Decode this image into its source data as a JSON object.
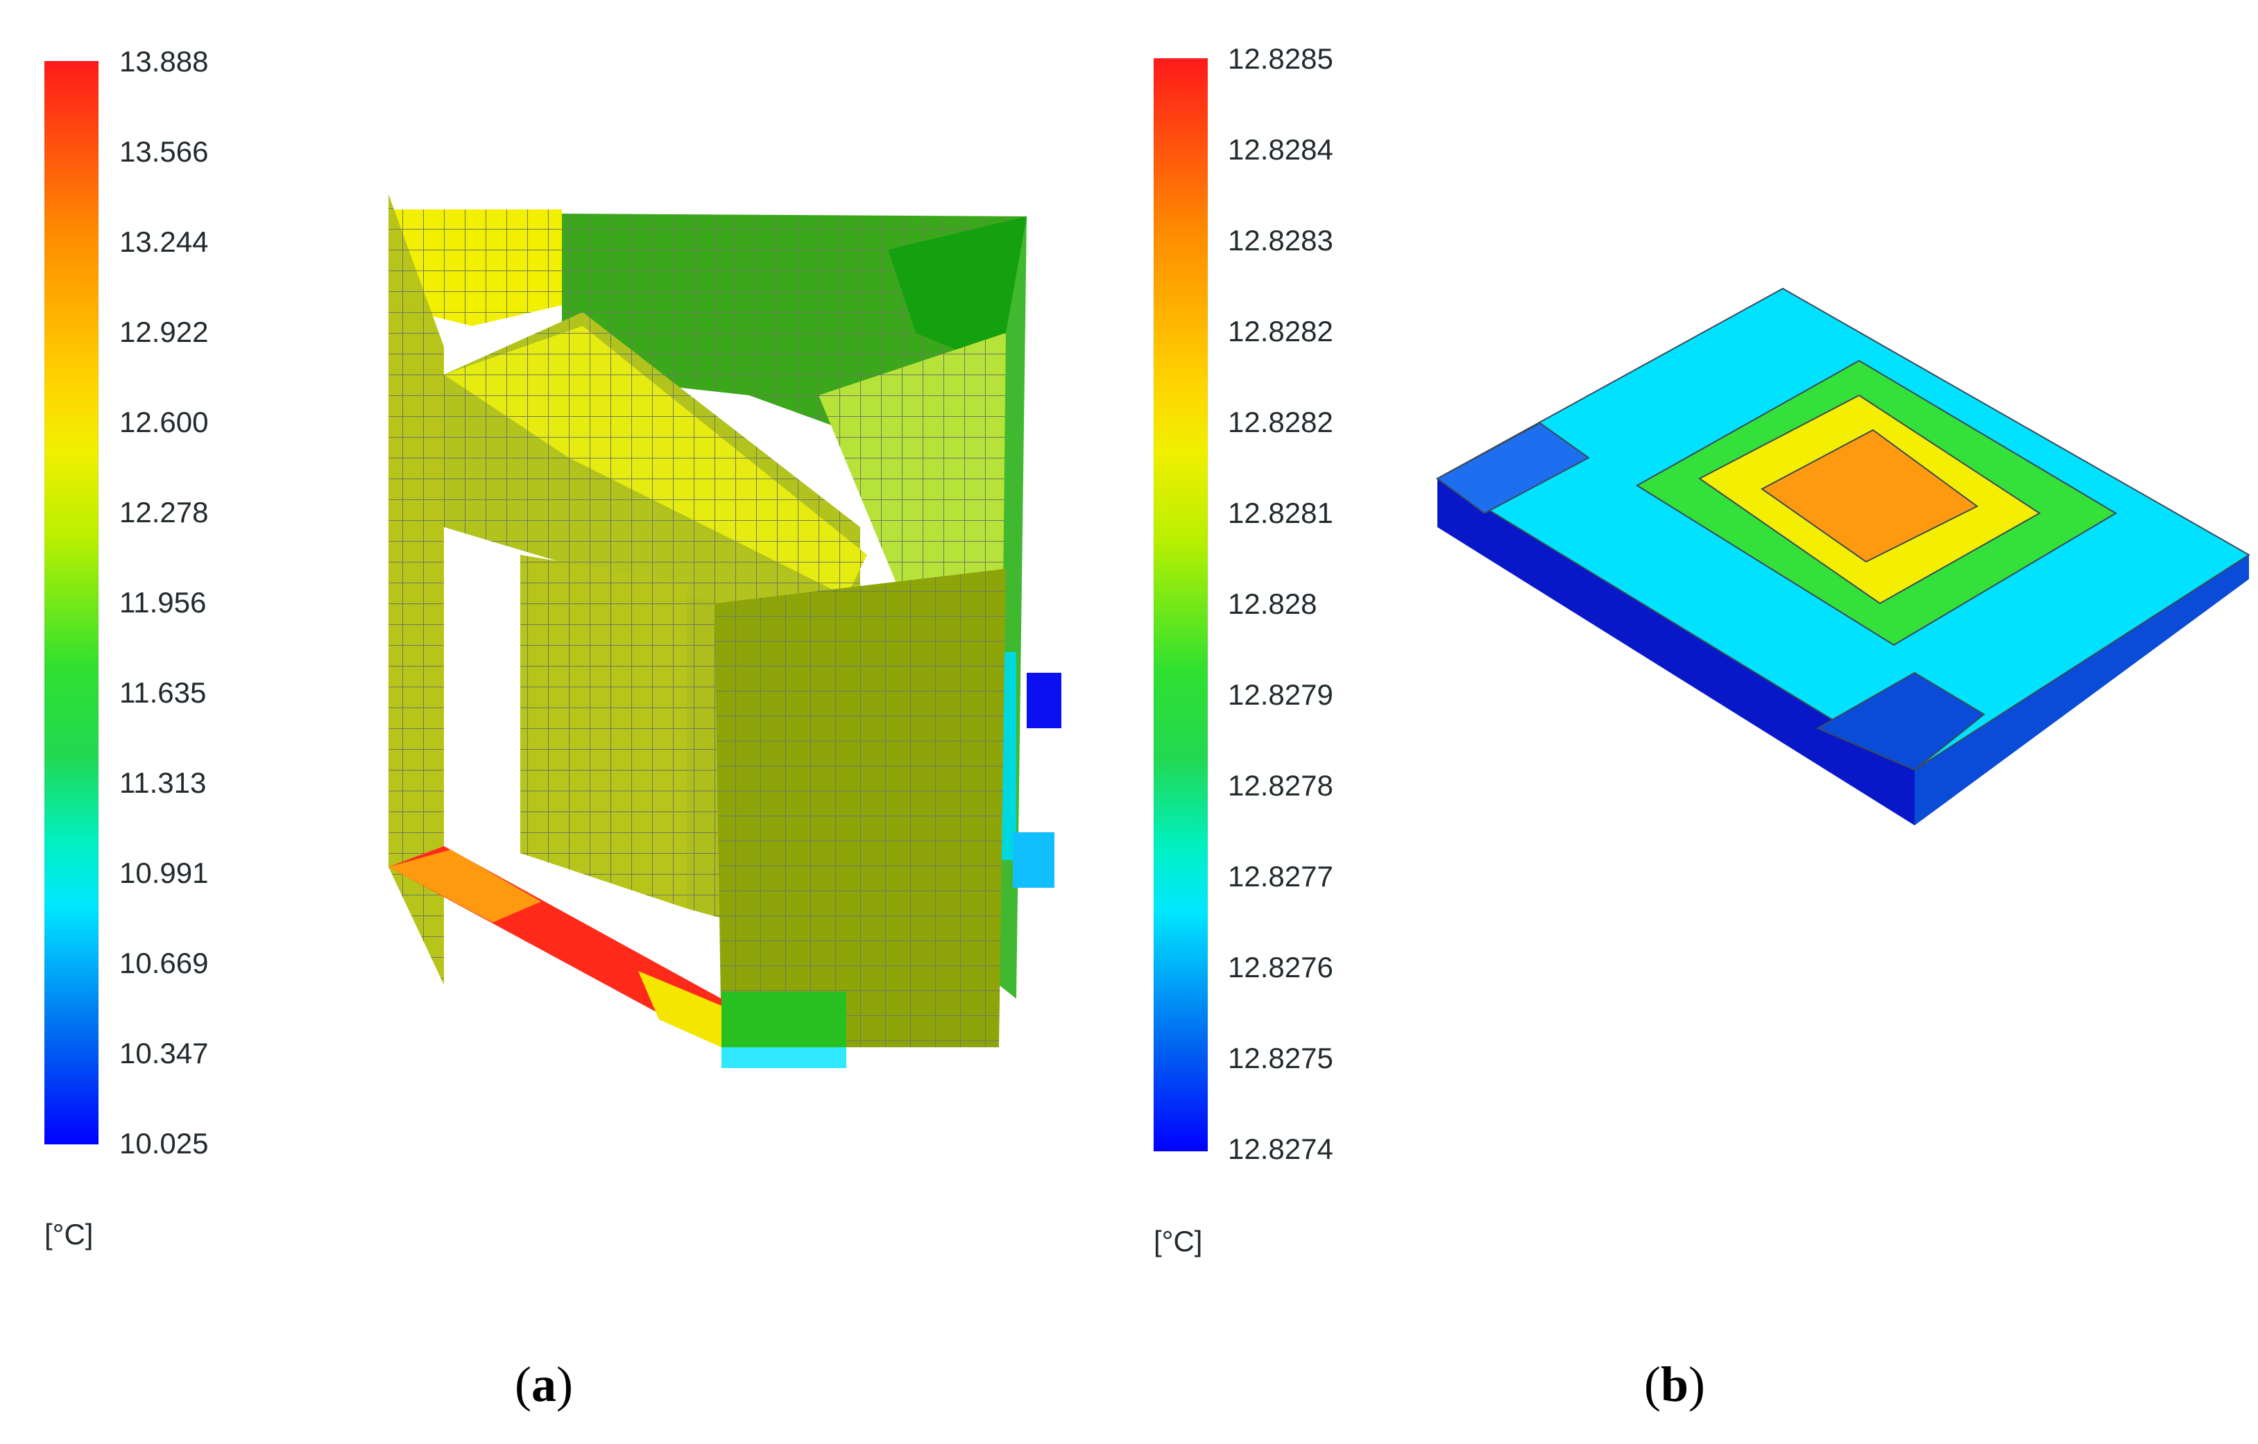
{
  "panel_a": {
    "legend_ticks": [
      "13.888",
      "13.566",
      "13.244",
      "12.922",
      "12.600",
      "12.278",
      "11.956",
      "11.635",
      "11.313",
      "10.991",
      "10.669",
      "10.347",
      "10.025"
    ],
    "unit": "[°C]",
    "caption_letter": "a"
  },
  "panel_b": {
    "legend_ticks": [
      "12.8285",
      "12.8284",
      "12.8283",
      "12.8282",
      "12.8282",
      "12.8281",
      "12.828",
      "12.8279",
      "12.8278",
      "12.8277",
      "12.8276",
      "12.8275",
      "12.8274"
    ],
    "unit": "[°C]",
    "caption_letter": "b"
  },
  "colors": {
    "hot": "#ff1a1a",
    "yellow": "#f5e600",
    "olive": "#8fa80a",
    "green": "#22b422",
    "cyan": "#00e6ff",
    "blue": "#0000ff"
  }
}
